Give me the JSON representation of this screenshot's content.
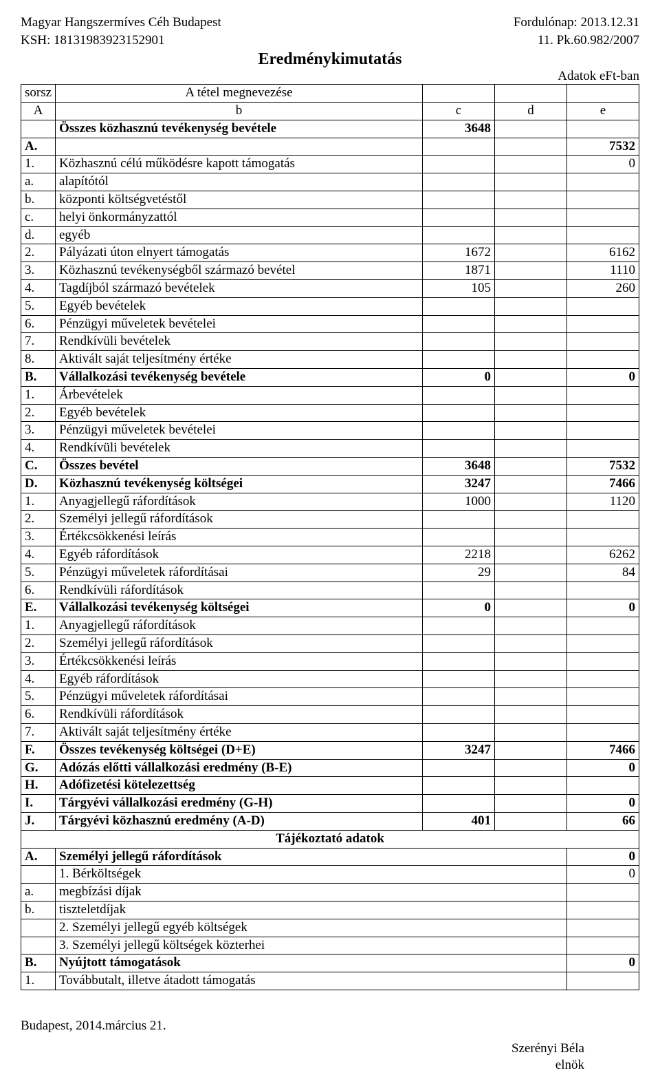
{
  "header": {
    "org_name": "Magyar Hangszermíves Céh Budapest",
    "ksh_label": "KSH: 18131983923152901",
    "fordulo": "Fordulónap: 2013.12.31",
    "case_no": "11. Pk.60.982/2007",
    "doc_title": "Eredménykimutatás",
    "unit_note": "Adatok eFt-ban"
  },
  "colhead": {
    "sorsz": "sorsz",
    "megnev": "A tétel megnevezése",
    "A": "A",
    "b": "b",
    "c": "c",
    "d": "d",
    "e": "e"
  },
  "rows": [
    {
      "a": "",
      "b": "Összes közhasznú tevékenység bevétele",
      "c": "3648",
      "d": "",
      "e": "",
      "bold": true
    },
    {
      "a": "A.",
      "b": "",
      "c": "",
      "d": "",
      "e": "7532",
      "bold": true
    },
    {
      "a": "1.",
      "b": "Közhasznú célú működésre kapott támogatás",
      "c": "",
      "d": "",
      "e": "0"
    },
    {
      "a": "a.",
      "b": "alapítótól",
      "c": "",
      "d": "",
      "e": ""
    },
    {
      "a": "b.",
      "b": "központi költségvetéstől",
      "c": "",
      "d": "",
      "e": ""
    },
    {
      "a": "c.",
      "b": "helyi önkormányzattól",
      "c": "",
      "d": "",
      "e": ""
    },
    {
      "a": "d.",
      "b": "egyéb",
      "c": "",
      "d": "",
      "e": ""
    },
    {
      "a": "2.",
      "b": "Pályázati úton elnyert támogatás",
      "c": "1672",
      "d": "",
      "e": "6162"
    },
    {
      "a": "3.",
      "b": "Közhasznú tevékenységből származó bevétel",
      "c": "1871",
      "d": "",
      "e": "1110"
    },
    {
      "a": "4.",
      "b": "Tagdíjból származó bevételek",
      "c": "105",
      "d": "",
      "e": "260"
    },
    {
      "a": "5.",
      "b": "Egyéb bevételek",
      "c": "",
      "d": "",
      "e": ""
    },
    {
      "a": "6.",
      "b": "Pénzügyi műveletek bevételei",
      "c": "",
      "d": "",
      "e": ""
    },
    {
      "a": "7.",
      "b": "Rendkívüli bevételek",
      "c": "",
      "d": "",
      "e": ""
    },
    {
      "a": "8.",
      "b": "Aktivált saját teljesítmény értéke",
      "c": "",
      "d": "",
      "e": ""
    },
    {
      "a": "B.",
      "b": "Vállalkozási tevékenység bevétele",
      "c": "0",
      "d": "",
      "e": "0",
      "bold": true
    },
    {
      "a": "1.",
      "b": "Árbevételek",
      "c": "",
      "d": "",
      "e": ""
    },
    {
      "a": "2.",
      "b": "Egyéb bevételek",
      "c": "",
      "d": "",
      "e": ""
    },
    {
      "a": "3.",
      "b": "Pénzügyi műveletek bevételei",
      "c": "",
      "d": "",
      "e": ""
    },
    {
      "a": "4.",
      "b": "Rendkívüli bevételek",
      "c": "",
      "d": "",
      "e": ""
    },
    {
      "a": "C.",
      "b": "Összes bevétel",
      "c": "3648",
      "d": "",
      "e": "7532",
      "bold": true
    },
    {
      "a": "D.",
      "b": "Közhasznú tevékenység költségei",
      "c": "3247",
      "d": "",
      "e": "7466",
      "bold": true
    },
    {
      "a": "1.",
      "b": "Anyagjellegű ráfordítások",
      "c": "1000",
      "d": "",
      "e": "1120"
    },
    {
      "a": "2.",
      "b": "Személyi jellegű ráfordítások",
      "c": "",
      "d": "",
      "e": ""
    },
    {
      "a": "3.",
      "b": "Értékcsökkenési leírás",
      "c": "",
      "d": "",
      "e": ""
    },
    {
      "a": "4.",
      "b": "Egyéb ráfordítások",
      "c": "2218",
      "d": "",
      "e": "6262"
    },
    {
      "a": "5.",
      "b": "Pénzügyi műveletek ráfordításai",
      "c": "29",
      "d": "",
      "e": "84"
    },
    {
      "a": "6.",
      "b": "Rendkívüli ráfordítások",
      "c": "",
      "d": "",
      "e": ""
    },
    {
      "a": "E.",
      "b": "Vállalkozási tevékenység költségei",
      "c": "0",
      "d": "",
      "e": "0",
      "bold": true
    },
    {
      "a": "1.",
      "b": "Anyagjellegű ráfordítások",
      "c": "",
      "d": "",
      "e": ""
    },
    {
      "a": "2.",
      "b": "Személyi jellegű ráfordítások",
      "c": "",
      "d": "",
      "e": ""
    },
    {
      "a": "3.",
      "b": "Értékcsökkenési leírás",
      "c": "",
      "d": "",
      "e": ""
    },
    {
      "a": "4.",
      "b": "Egyéb ráfordítások",
      "c": "",
      "d": "",
      "e": ""
    },
    {
      "a": "5.",
      "b": "Pénzügyi műveletek ráfordításai",
      "c": "",
      "d": "",
      "e": ""
    },
    {
      "a": "6.",
      "b": "Rendkívüli ráfordítások",
      "c": "",
      "d": "",
      "e": ""
    },
    {
      "a": "7.",
      "b": "Aktivált saját teljesítmény értéke",
      "c": "",
      "d": "",
      "e": ""
    },
    {
      "a": "F.",
      "b": "Összes tevékenység költségei (D+E)",
      "c": "3247",
      "d": "",
      "e": "7466",
      "bold": true
    },
    {
      "a": "G.",
      "b": "Adózás előtti vállalkozási eredmény (B-E)",
      "c": "",
      "d": "",
      "e": "0",
      "bold": true
    },
    {
      "a": "H.",
      "b": "Adófizetési kötelezettség",
      "c": "",
      "d": "",
      "e": "",
      "bold": true
    },
    {
      "a": "I.",
      "b": "Tárgyévi vállalkozási eredmény (G-H)",
      "c": "",
      "d": "",
      "e": "0",
      "bold": true
    },
    {
      "a": "J.",
      "b": "Tárgyévi közhasznú eredmény (A-D)",
      "c": "401",
      "d": "",
      "e": "66",
      "bold": true
    }
  ],
  "info_title": "Tájékoztató adatok",
  "info_rows": [
    {
      "a": "A.",
      "b": "Személyi jellegű ráfordítások",
      "e": "0",
      "bold": true
    },
    {
      "a": "",
      "b": "1. Bérköltségek",
      "e": "0"
    },
    {
      "a": "a.",
      "b": "megbízási díjak",
      "e": ""
    },
    {
      "a": "b.",
      "b": "tiszteletdíjak",
      "e": ""
    },
    {
      "a": "",
      "b": "2. Személyi jellegű egyéb költségek",
      "e": ""
    },
    {
      "a": "",
      "b": "3. Személyi jellegű költségek közterhei",
      "e": ""
    },
    {
      "a": "B.",
      "b": "Nyújtott támogatások",
      "e": "0",
      "bold": true
    },
    {
      "a": "1.",
      "b": "Továbbutalt, illetve átadott támogatás",
      "e": ""
    }
  ],
  "footer": {
    "place_date": "Budapest, 2014.március 21.",
    "sig_name": "Szerényi Béla",
    "sig_title": "elnök"
  }
}
